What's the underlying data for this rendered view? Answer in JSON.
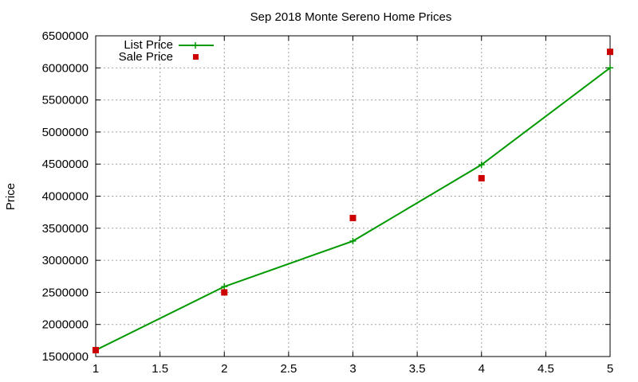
{
  "chart_data": {
    "type": "line",
    "title": "Sep 2018 Monte Sereno Home Prices",
    "xlabel": "",
    "ylabel": "Price",
    "xlim": [
      1,
      5
    ],
    "ylim": [
      1500000,
      6500000
    ],
    "x_ticks": [
      1,
      1.5,
      2,
      2.5,
      3,
      3.5,
      4,
      4.5,
      5
    ],
    "x_tick_labels": [
      "1",
      "1.5",
      "2",
      "2.5",
      "3",
      "3.5",
      "4",
      "4.5",
      "5"
    ],
    "y_ticks": [
      1500000,
      2000000,
      2500000,
      3000000,
      3500000,
      4000000,
      4500000,
      5000000,
      5500000,
      6000000,
      6500000
    ],
    "y_tick_labels": [
      "1500000",
      "2000000",
      "2500000",
      "3000000",
      "3500000",
      "4000000",
      "4500000",
      "5000000",
      "5500000",
      "6000000",
      "6500000"
    ],
    "grid": true,
    "legend_position": "top-left",
    "series": [
      {
        "name": "List Price",
        "style": "line-with-plus-markers",
        "color": "#009900",
        "x": [
          1,
          2,
          3,
          4,
          5
        ],
        "values": [
          1600000,
          2590000,
          3300000,
          4490000,
          6000000
        ]
      },
      {
        "name": "Sale Price",
        "style": "square-markers",
        "color": "#cc0000",
        "x": [
          1,
          2,
          3,
          4,
          5
        ],
        "values": [
          1600000,
          2500000,
          3660000,
          4280000,
          6250000
        ]
      }
    ]
  }
}
